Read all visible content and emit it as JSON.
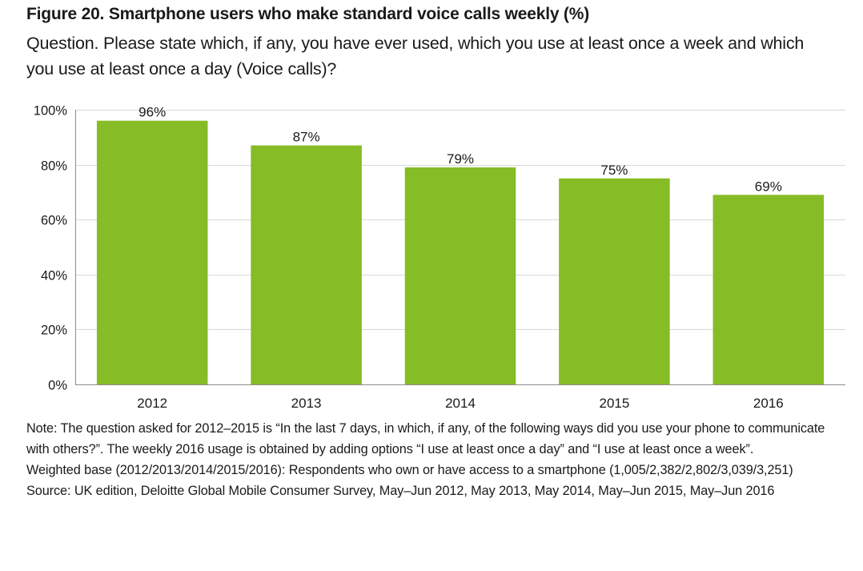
{
  "title": "Figure 20. Smartphone users who make standard voice calls weekly (%)",
  "subtitle": "Question. Please state which, if any, you have ever used, which you use at least once a week and which you use at least once a day (Voice calls)?",
  "chart_data": {
    "type": "bar",
    "categories": [
      "2012",
      "2013",
      "2014",
      "2015",
      "2016"
    ],
    "values": [
      96,
      87,
      79,
      75,
      69
    ],
    "data_labels": [
      "96%",
      "87%",
      "79%",
      "75%",
      "69%"
    ],
    "y_ticks": [
      0,
      20,
      40,
      60,
      80,
      100
    ],
    "y_tick_labels": [
      "0%",
      "20%",
      "40%",
      "60%",
      "80%",
      "100%"
    ],
    "ylim": [
      0,
      100
    ],
    "bar_color": "#86bc25",
    "grid": true,
    "legend": "none"
  },
  "notes": {
    "note": "Note: The question asked for 2012–2015 is “In the last 7 days, in which, if any, of the following ways did you use your phone to communicate with others?”. The weekly 2016 usage is obtained by adding options “I use at least once a day” and “I use at least once a week”.",
    "base": "Weighted base (2012/2013/2014/2015/2016): Respondents who own or have access to a smartphone (1,005/2,382/2,802/3,039/3,251)",
    "source": "Source: UK edition, Deloitte Global Mobile Consumer Survey, May–Jun 2012, May 2013, May 2014, May–Jun 2015, May–Jun 2016"
  }
}
